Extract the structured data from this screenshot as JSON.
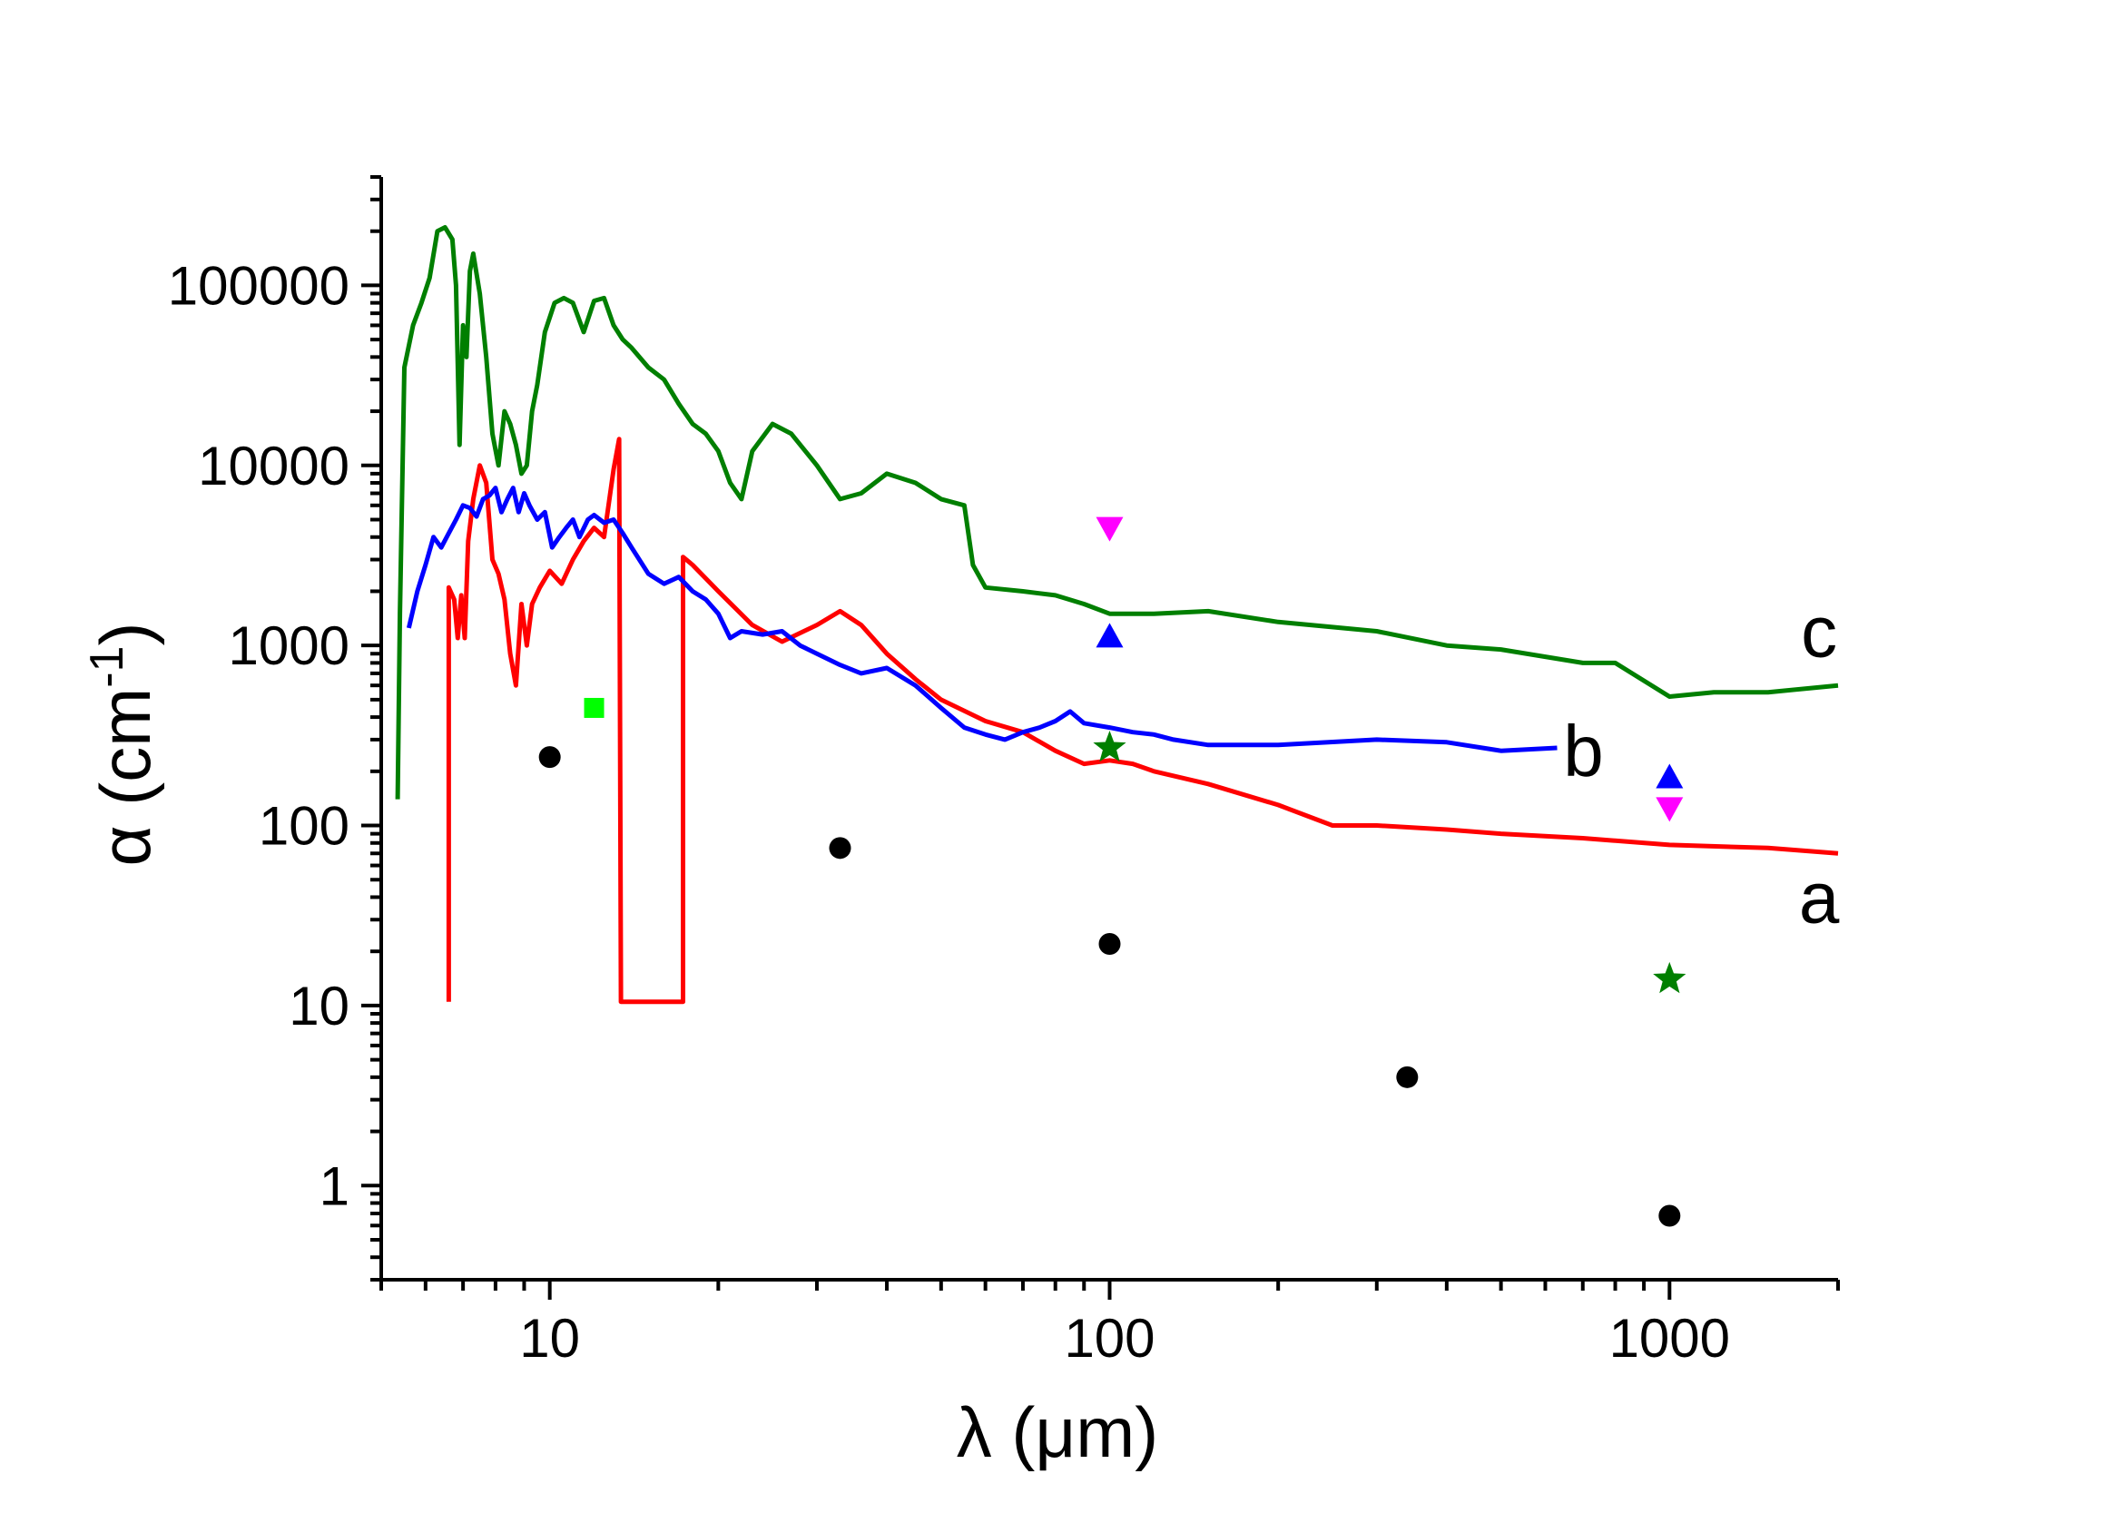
{
  "chart_data": {
    "type": "line",
    "title": "",
    "xscale": "log",
    "yscale": "log",
    "xlabel": "λ (μm)",
    "ylabel_main": "α (cm",
    "ylabel_sup": "-1",
    "ylabel_close": ")",
    "xlim": [
      5,
      2000
    ],
    "ylim": [
      0.3,
      400000
    ],
    "x_ticks": [
      {
        "value": 10,
        "label": "10"
      },
      {
        "value": 100,
        "label": "100"
      },
      {
        "value": 1000,
        "label": "1000"
      }
    ],
    "y_ticks": [
      {
        "value": 1,
        "label": "1"
      },
      {
        "value": 10,
        "label": "10"
      },
      {
        "value": 100,
        "label": "100"
      },
      {
        "value": 1000,
        "label": "1000"
      },
      {
        "value": 10000,
        "label": "10000"
      },
      {
        "value": 100000,
        "label": "100000"
      }
    ],
    "series": [
      {
        "name": "a",
        "color": "#ff0000",
        "label_pos": [
          1800,
          40
        ],
        "x": [
          6.6,
          6.6,
          6.75,
          6.85,
          6.95,
          7.05,
          7.15,
          7.3,
          7.5,
          7.7,
          7.9,
          8.1,
          8.3,
          8.5,
          8.7,
          8.9,
          9.1,
          9.3,
          9.6,
          10,
          10.5,
          11,
          11.5,
          12,
          12.5,
          13,
          13.3,
          13.4,
          13.4,
          17.3,
          17.3,
          18,
          20,
          23,
          26,
          30,
          33,
          36,
          40,
          45,
          50,
          60,
          70,
          80,
          90,
          100,
          110,
          120,
          150,
          200,
          250,
          300,
          400,
          500,
          700,
          1000,
          1500,
          2000
        ],
        "y": [
          10.5,
          2100,
          1800,
          1100,
          1900,
          1100,
          3800,
          6500,
          10000,
          8000,
          3000,
          2500,
          1800,
          900,
          600,
          1700,
          1000,
          1700,
          2100,
          2600,
          2200,
          3000,
          3800,
          4500,
          4000,
          9500,
          14000,
          10.5,
          10.5,
          10.5,
          3100,
          2800,
          2000,
          1300,
          1050,
          1300,
          1550,
          1300,
          900,
          650,
          500,
          380,
          330,
          260,
          220,
          230,
          220,
          200,
          170,
          130,
          100,
          100,
          95,
          90,
          85,
          78,
          75,
          70
        ]
      },
      {
        "name": "b",
        "color": "#0000ff",
        "label_pos": [
          650,
          270
        ],
        "x": [
          5.6,
          5.8,
          6.0,
          6.2,
          6.4,
          6.6,
          6.8,
          7.0,
          7.2,
          7.4,
          7.6,
          7.8,
          8.0,
          8.2,
          8.4,
          8.6,
          8.8,
          9.0,
          9.2,
          9.5,
          9.8,
          10.1,
          10.4,
          10.7,
          11,
          11.3,
          11.7,
          12,
          12.5,
          13,
          13.5,
          14,
          15,
          16,
          17,
          18,
          19,
          20,
          21,
          22,
          24,
          26,
          28,
          30,
          33,
          36,
          40,
          45,
          50,
          55,
          60,
          65,
          70,
          75,
          80,
          85,
          90,
          100,
          110,
          120,
          130,
          150,
          200,
          300,
          400,
          500,
          630
        ],
        "y": [
          1250,
          2000,
          2800,
          4000,
          3500,
          4200,
          5000,
          6000,
          5800,
          5200,
          6500,
          6800,
          7500,
          5500,
          6500,
          7500,
          5500,
          7000,
          6000,
          5000,
          5500,
          3500,
          4000,
          4500,
          5000,
          4000,
          5000,
          5300,
          4800,
          5000,
          4200,
          3500,
          2500,
          2200,
          2400,
          2000,
          1800,
          1500,
          1100,
          1200,
          1150,
          1200,
          1000,
          900,
          780,
          700,
          750,
          600,
          450,
          350,
          320,
          300,
          330,
          350,
          380,
          430,
          370,
          350,
          330,
          320,
          300,
          280,
          280,
          300,
          290,
          260,
          270
        ]
      },
      {
        "name": "c",
        "color": "#007f00",
        "label_pos": [
          1800,
          1200
        ],
        "x": [
          5.35,
          5.4,
          5.5,
          5.7,
          5.9,
          6.1,
          6.3,
          6.5,
          6.7,
          6.8,
          6.9,
          7.0,
          7.1,
          7.2,
          7.3,
          7.5,
          7.7,
          7.9,
          8.1,
          8.3,
          8.5,
          8.7,
          8.9,
          9.1,
          9.3,
          9.5,
          9.8,
          10.2,
          10.6,
          11,
          11.5,
          12,
          12.5,
          13,
          13.5,
          14,
          15,
          16,
          17,
          18,
          19,
          20,
          21,
          22,
          23,
          25,
          27,
          30,
          33,
          36,
          40,
          45,
          50,
          55,
          57,
          60,
          70,
          80,
          90,
          100,
          120,
          150,
          200,
          300,
          400,
          500,
          700,
          800,
          1000,
          1200,
          1500,
          2000
        ],
        "y": [
          140,
          1500,
          35000,
          60000,
          80000,
          110000,
          200000,
          210000,
          180000,
          100000,
          13000,
          60000,
          40000,
          120000,
          150000,
          90000,
          40000,
          15000,
          10000,
          20000,
          17000,
          13000,
          9000,
          10000,
          20000,
          28000,
          55000,
          80000,
          85000,
          80000,
          55000,
          82000,
          85000,
          60000,
          50000,
          45000,
          35000,
          30000,
          22000,
          17000,
          15000,
          12000,
          8000,
          6500,
          12000,
          17000,
          15000,
          10000,
          6500,
          7000,
          9000,
          8000,
          6500,
          6000,
          2800,
          2100,
          2000,
          1900,
          1700,
          1500,
          1500,
          1550,
          1350,
          1200,
          1000,
          950,
          800,
          800,
          520,
          550,
          550,
          600
        ]
      }
    ],
    "markers": [
      {
        "name": "black-circles",
        "shape": "circle",
        "color": "#000000",
        "points": [
          [
            10,
            240
          ],
          [
            33,
            75
          ],
          [
            100,
            22
          ],
          [
            340,
            4
          ],
          [
            1000,
            0.68
          ]
        ]
      },
      {
        "name": "green-square",
        "shape": "square",
        "color": "#00ff00",
        "points": [
          [
            12,
            450
          ]
        ]
      },
      {
        "name": "green-stars",
        "shape": "star",
        "color": "#007f00",
        "points": [
          [
            100,
            270
          ],
          [
            1000,
            14
          ]
        ]
      },
      {
        "name": "blue-up-triangles",
        "shape": "triangle-up",
        "color": "#0000ff",
        "points": [
          [
            100,
            1120
          ],
          [
            1000,
            185
          ]
        ]
      },
      {
        "name": "magenta-down-triangles",
        "shape": "triangle-down",
        "color": "#ff00ff",
        "points": [
          [
            100,
            4500
          ],
          [
            1000,
            125
          ]
        ]
      }
    ]
  }
}
